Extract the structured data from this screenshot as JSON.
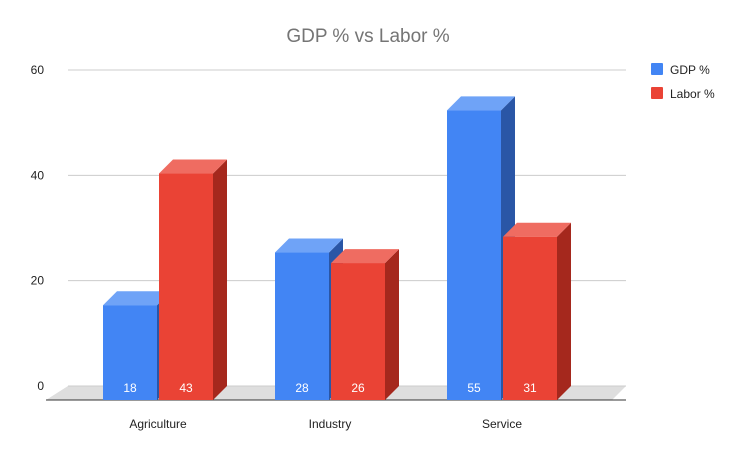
{
  "chart_data": {
    "type": "bar",
    "title": "GDP % vs Labor %",
    "categories": [
      "Agriculture",
      "Industry",
      "Service"
    ],
    "series": [
      {
        "name": "GDP %",
        "values": [
          18,
          28,
          55
        ],
        "color": "#4285f4",
        "side_color": "#2a56a6",
        "top_color": "#6fa3f7"
      },
      {
        "name": "Labor %",
        "values": [
          43,
          26,
          31
        ],
        "color": "#ea4335",
        "side_color": "#a5281d",
        "top_color": "#ef6c61"
      }
    ],
    "y_ticks": [
      "0",
      "20",
      "40",
      "60"
    ],
    "ylim": [
      0,
      60
    ],
    "grid": true,
    "legend": "right",
    "style": "3d"
  }
}
